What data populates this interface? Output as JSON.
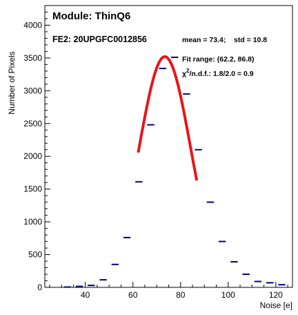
{
  "chart_data": {
    "type": "histogram",
    "title": "Module: ThinQ6",
    "subtitle": "FE2: 20UPGFC0012856",
    "xlabel": "Noise [e]",
    "ylabel": "Number of Pixels",
    "xlim": [
      23,
      127
    ],
    "ylim": [
      0,
      4300
    ],
    "x_ticks": [
      40,
      60,
      80,
      100,
      120
    ],
    "y_ticks": [
      0,
      500,
      1000,
      1500,
      2000,
      2500,
      3000,
      3500,
      4000
    ],
    "grid": false,
    "colors": {
      "markers": "#00007f",
      "fit": "#e8141b",
      "axes": "#000000"
    },
    "bins": [
      {
        "x": 32.5,
        "y": 5
      },
      {
        "x": 37.5,
        "y": 15
      },
      {
        "x": 42.5,
        "y": 30
      },
      {
        "x": 47.5,
        "y": 115
      },
      {
        "x": 52.5,
        "y": 350
      },
      {
        "x": 57.5,
        "y": 760
      },
      {
        "x": 62.5,
        "y": 1610
      },
      {
        "x": 67.5,
        "y": 2480
      },
      {
        "x": 72.5,
        "y": 3340
      },
      {
        "x": 77.5,
        "y": 3510
      },
      {
        "x": 82.5,
        "y": 2950
      },
      {
        "x": 87.5,
        "y": 2100
      },
      {
        "x": 92.5,
        "y": 1300
      },
      {
        "x": 97.5,
        "y": 700
      },
      {
        "x": 102.5,
        "y": 390
      },
      {
        "x": 107.5,
        "y": 200
      },
      {
        "x": 112.5,
        "y": 90
      },
      {
        "x": 117.5,
        "y": 70
      },
      {
        "x": 122.5,
        "y": 40
      }
    ],
    "bin_width": 5,
    "fit": {
      "function": "gaussian",
      "amplitude": 3520,
      "mean": 73.4,
      "sigma": 10.8,
      "range": [
        62.2,
        86.8
      ]
    },
    "annotations": {
      "stats": "mean = 73.4;    std = 10.8",
      "fit_range": "Fit range: (62.2, 86.8)",
      "chi2_symbol": "χ",
      "chi2_sup": "2",
      "chi2_rest": "/n.d.f.: 1.8/2.0 = 0.9"
    }
  }
}
